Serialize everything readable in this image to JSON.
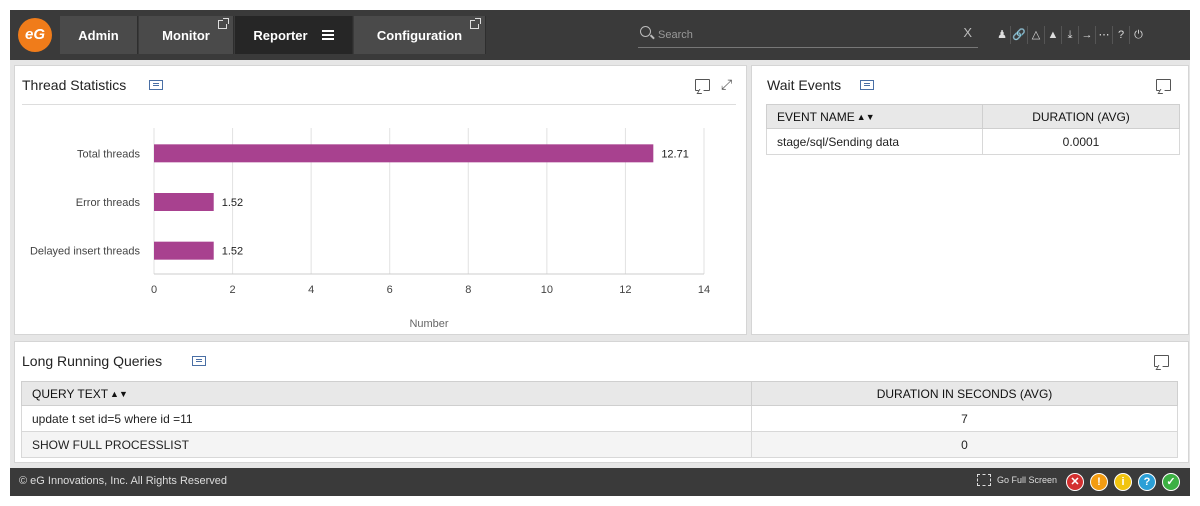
{
  "nav": {
    "tabs": [
      {
        "label": "Admin"
      },
      {
        "label": "Monitor"
      },
      {
        "label": "Reporter"
      },
      {
        "label": "Configuration"
      }
    ],
    "search_placeholder": "Search",
    "clear_label": "X"
  },
  "thread_panel": {
    "title": "Thread Statistics"
  },
  "chart_data": {
    "type": "bar",
    "orientation": "horizontal",
    "categories": [
      "Total threads",
      "Error threads",
      "Delayed insert threads"
    ],
    "values": [
      12.71,
      1.52,
      1.52
    ],
    "value_labels": [
      "12.71",
      "1.52",
      "1.52"
    ],
    "xlabel": "Number",
    "xlim": [
      0,
      14
    ],
    "xticks": [
      "0",
      "2",
      "4",
      "6",
      "8",
      "10",
      "12",
      "14"
    ],
    "bar_color": "#a8418f",
    "grid": true
  },
  "wait_panel": {
    "title": "Wait Events",
    "headers": [
      "EVENT NAME",
      "DURATION (AVG)"
    ],
    "rows": [
      [
        "stage/sql/Sending data",
        "0.0001"
      ]
    ]
  },
  "queries_panel": {
    "title": "Long Running Queries",
    "headers": [
      "QUERY TEXT",
      "DURATION IN SECONDS (AVG)"
    ],
    "rows": [
      [
        "update t set id=5 where id =11",
        "7"
      ],
      [
        "SHOW FULL PROCESSLIST",
        "0"
      ]
    ]
  },
  "footer": {
    "copyright": "© eG Innovations, Inc. All Rights Reserved",
    "fullscreen_label": "Go Full Screen",
    "status_colors": [
      "#d32f2f",
      "#f39c12",
      "#f1c40f",
      "#2a9fd6",
      "#3cb043"
    ]
  }
}
